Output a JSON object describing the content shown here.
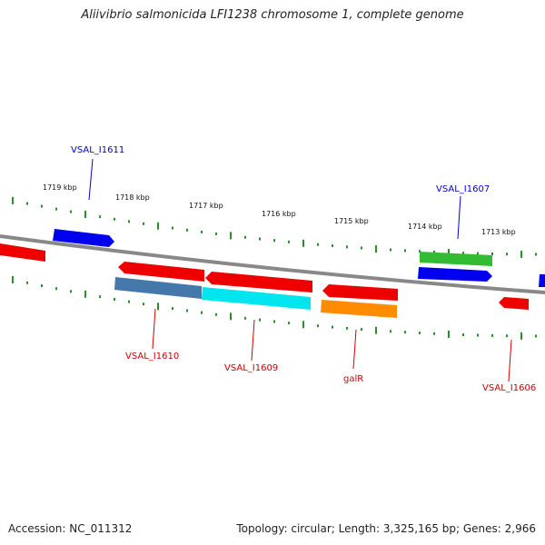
{
  "title": "Aliivibrio salmonicida LFI1238 chromosome 1, complete genome",
  "footer": {
    "accession": "Accession: NC_011312",
    "summary": "Topology: circular; Length: 3,325,165 bp; Genes: 2,966"
  },
  "scale_labels": [
    "1719 kbp",
    "1718 kbp",
    "1717 kbp",
    "1716 kbp",
    "1715 kbp",
    "1714 kbp",
    "1713 kbp"
  ],
  "gene_labels": [
    {
      "text": "VSAL_I1611",
      "color": "#0000cc"
    },
    {
      "text": "VSAL_I1607",
      "color": "#0000cc"
    },
    {
      "text": "VSAL_I1610",
      "color": "#cc0000"
    },
    {
      "text": "VSAL_I1609",
      "color": "#cc0000"
    },
    {
      "text": "galR",
      "color": "#cc0000"
    },
    {
      "text": "VSAL_I1606",
      "color": "#cc0000"
    }
  ],
  "colors": {
    "backbone": "#888888",
    "ticks": "#2e8b2e",
    "forward_gene": "#0000ee",
    "reverse_gene": "#ee0000",
    "green_gene": "#33bb33",
    "steel_gene": "#4477aa",
    "cyan_gene": "#00e5ee",
    "orange_gene": "#ff8c00"
  }
}
